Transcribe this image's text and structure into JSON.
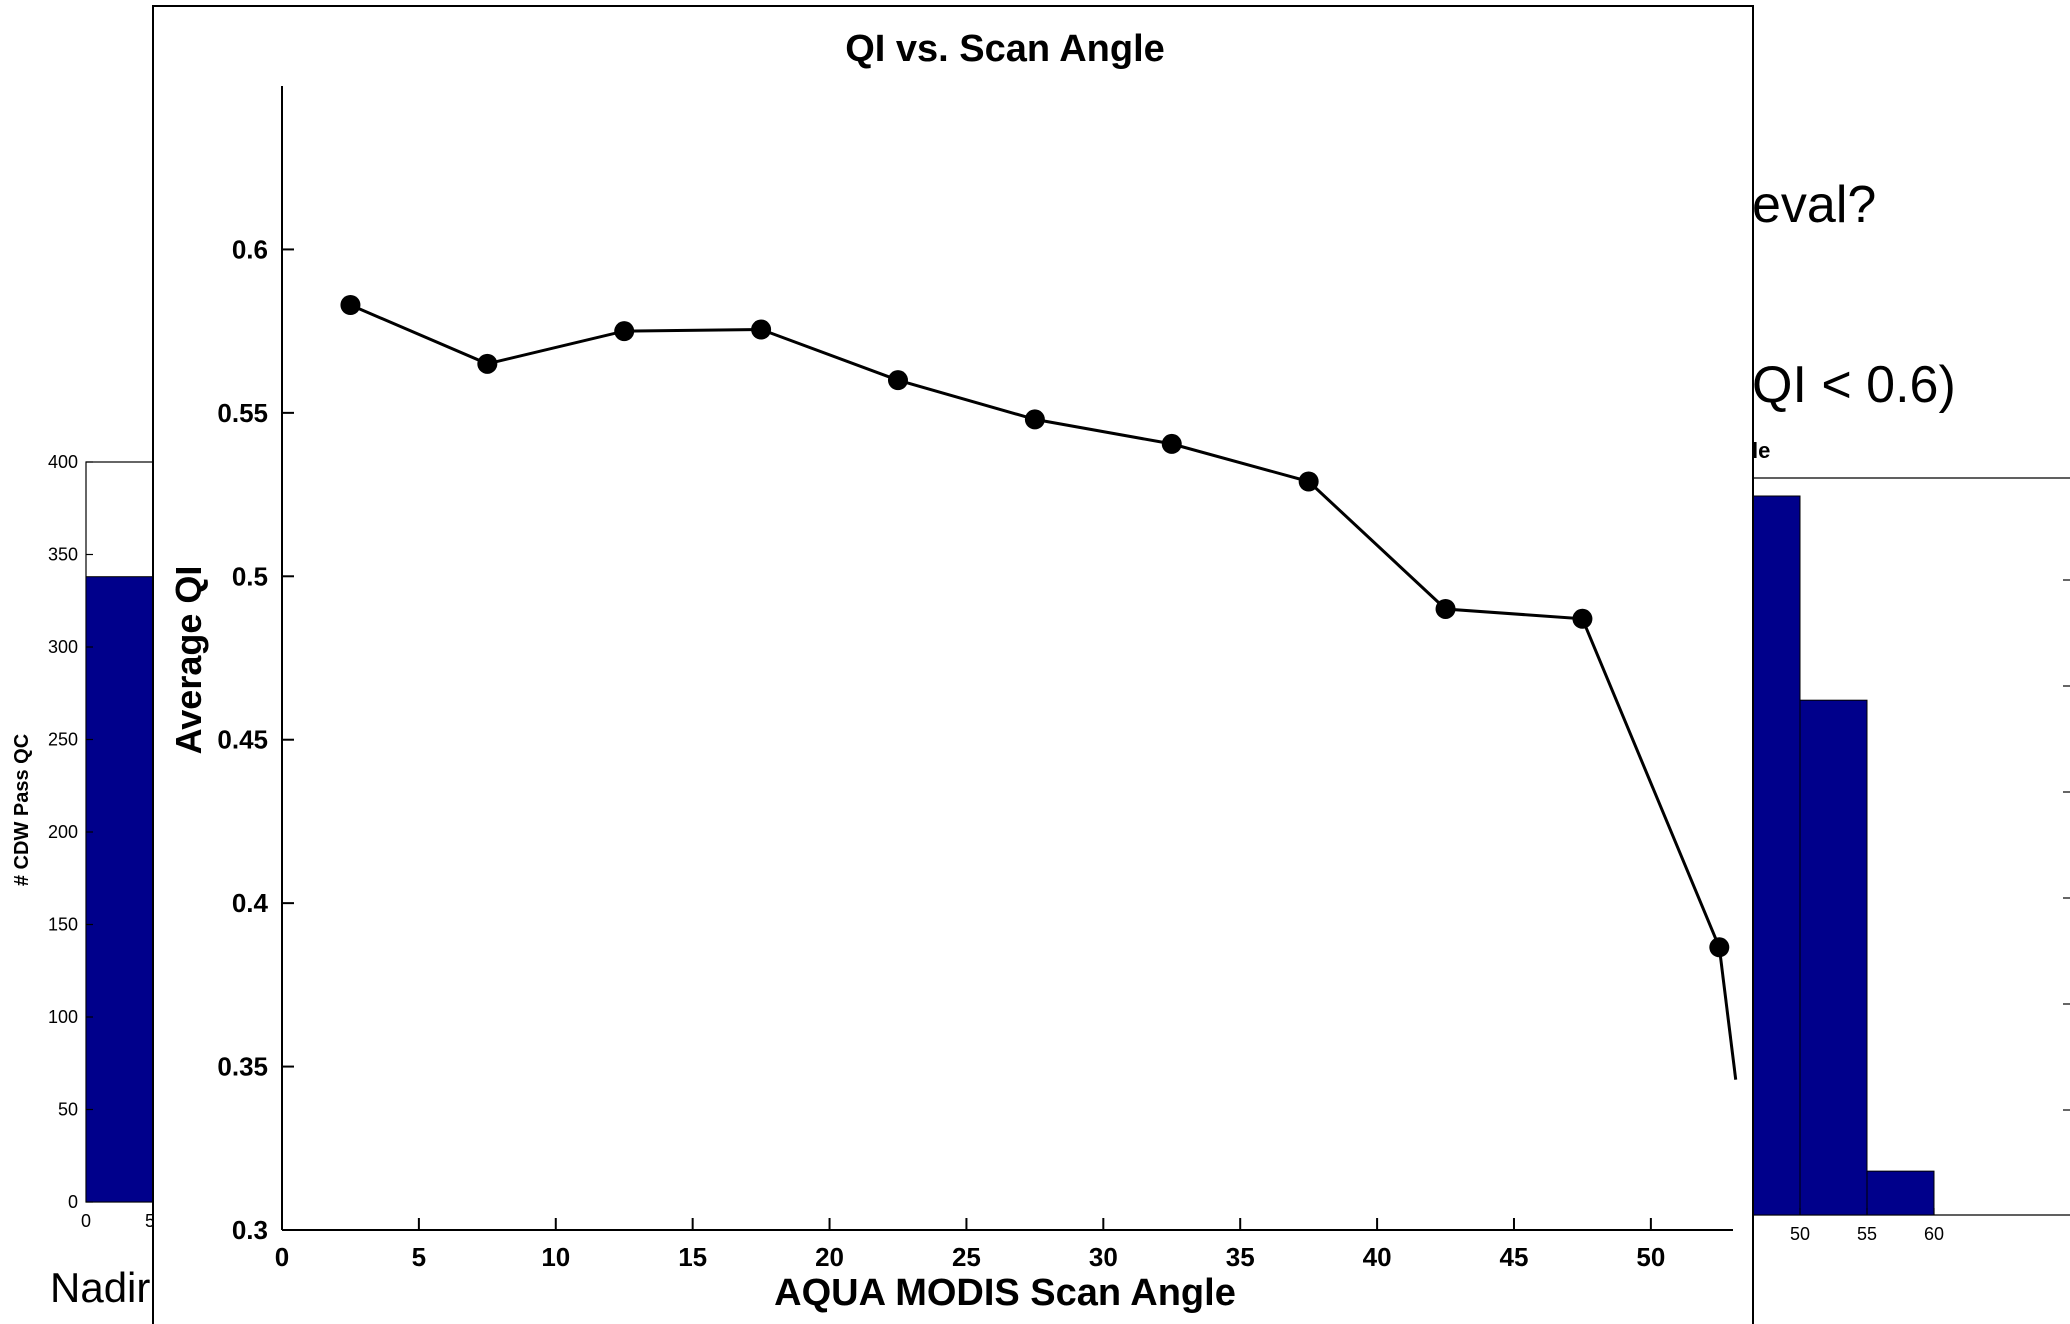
{
  "background_slide": {
    "text_right_1": "eval?",
    "text_right_2": "QI < 0.6)",
    "text_right_3": "le",
    "text_bottom_left": "Nadir"
  },
  "chart_data": [
    {
      "type": "line",
      "title": "QI vs. Scan Angle",
      "xlabel": "AQUA MODIS Scan Angle",
      "ylabel": "Average QI",
      "xlim": [
        0,
        53
      ],
      "ylim": [
        0.3,
        0.65
      ],
      "x_ticks": [
        0,
        5,
        10,
        15,
        20,
        25,
        30,
        35,
        40,
        45,
        50
      ],
      "y_ticks": [
        0.3,
        0.35,
        0.4,
        0.45,
        0.5,
        0.55,
        0.6
      ],
      "grid": false,
      "series": [
        {
          "x": [
            2.5,
            7.5,
            12.5,
            17.5,
            22.5,
            27.5,
            32.5,
            37.5,
            42.5,
            47.5,
            52.5
          ],
          "values": [
            0.583,
            0.565,
            0.575,
            0.5755,
            0.56,
            0.548,
            0.5405,
            0.529,
            0.49,
            0.487,
            0.3865
          ],
          "marker": "circle",
          "color": "#000000"
        }
      ],
      "tail_segment": {
        "from": [
          52.5,
          0.3865
        ],
        "to": [
          53.1,
          0.346
        ]
      }
    },
    {
      "type": "bar",
      "title": "",
      "ylabel": "# CDW Pass QC",
      "ylim": [
        0,
        400
      ],
      "y_ticks": [
        0,
        50,
        100,
        150,
        200,
        250,
        300,
        350,
        400
      ],
      "x_ticks_visible": [
        "0",
        "5"
      ],
      "categories": [
        2.5
      ],
      "values": [
        338
      ],
      "bar_color": "#00008b"
    },
    {
      "type": "bar",
      "title": "",
      "x_ticks": [
        50,
        55,
        60
      ],
      "bar_edges": [
        45,
        50,
        55,
        60
      ],
      "values": [
        1,
        0.716,
        0.061
      ],
      "bar_color": "#00008b"
    }
  ]
}
